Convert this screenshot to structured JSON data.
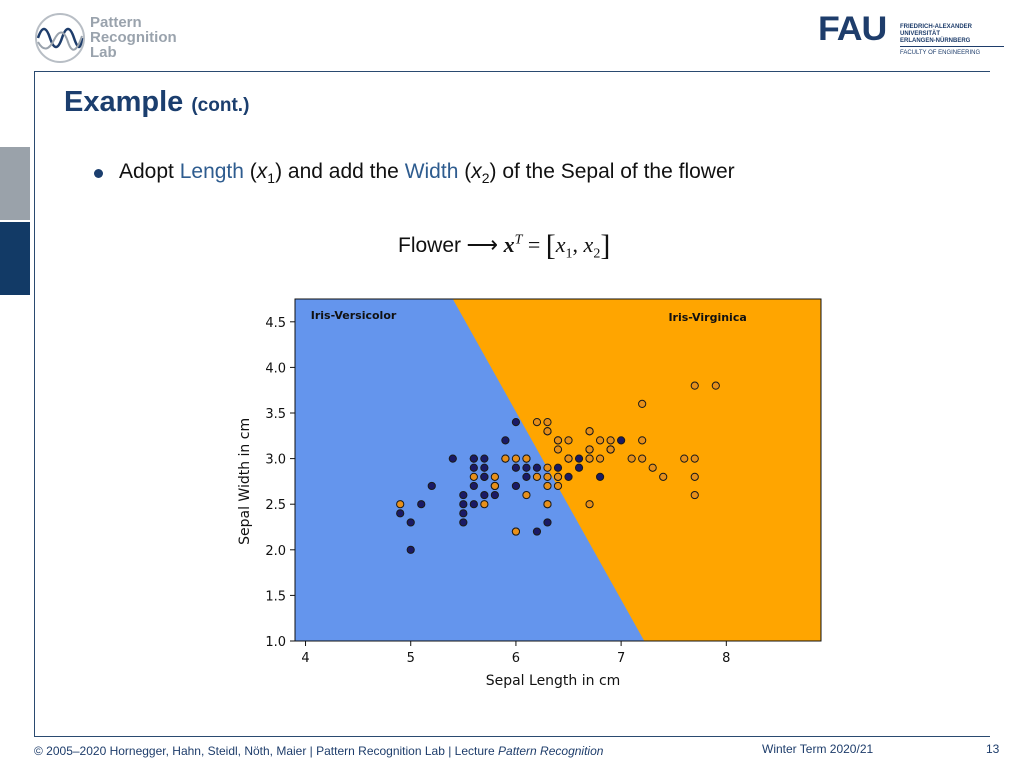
{
  "header": {
    "lab_logo_lines": [
      "Pattern",
      "Recognition",
      "Lab"
    ],
    "fau_word": "FAU",
    "fau_lines": [
      "FRIEDRICH-ALEXANDER",
      "UNIVERSITÄT",
      "ERLANGEN-NÜRNBERG"
    ],
    "fau_faculty": "FACULTY OF ENGINEERING"
  },
  "slide": {
    "title": "Example",
    "title_suffix": "(cont.)",
    "bullet": {
      "pre": "Adopt ",
      "length_word": "Length",
      "mid1": " (",
      "x1": "x",
      "x1_sub": "1",
      "mid2": ") and add the ",
      "width_word": "Width",
      "mid3": " (",
      "x2": "x",
      "x2_sub": "2",
      "post": ") of the Sepal of the flower"
    },
    "formula": {
      "lhs": "Flower",
      "arrow": "⟶",
      "vec": "x",
      "sup": "T",
      "eq": "=",
      "lbr": "[",
      "a": "x",
      "a_sub": "1",
      "comma": ",",
      "b": "x",
      "b_sub": "2",
      "rbr": "]"
    }
  },
  "chart_data": {
    "type": "scatter",
    "xlabel": "Sepal Length in cm",
    "ylabel": "Sepal Width in cm",
    "xlim": [
      3.9,
      8.9
    ],
    "ylim": [
      1.0,
      4.75
    ],
    "xticks": [
      4,
      5,
      6,
      7,
      8
    ],
    "yticks": [
      1.0,
      1.5,
      2.0,
      2.5,
      3.0,
      3.5,
      4.0,
      4.5
    ],
    "regions": [
      {
        "label": "Iris-Versicolor",
        "color": "#6495ed"
      },
      {
        "label": "Iris-Virginica",
        "color": "#ffa500"
      }
    ],
    "decision_boundary": {
      "top": [
        5.4,
        4.75
      ],
      "bottom": [
        7.22,
        1.0
      ]
    },
    "series": [
      {
        "name": "Iris-Versicolor",
        "color": "#1a1a66",
        "points": [
          [
            7.0,
            3.2
          ],
          [
            6.4,
            3.2
          ],
          [
            6.9,
            3.1
          ],
          [
            5.5,
            2.3
          ],
          [
            6.5,
            2.8
          ],
          [
            5.7,
            2.8
          ],
          [
            6.3,
            3.3
          ],
          [
            4.9,
            2.4
          ],
          [
            6.6,
            2.9
          ],
          [
            5.2,
            2.7
          ],
          [
            5.0,
            2.0
          ],
          [
            5.9,
            3.0
          ],
          [
            6.0,
            2.2
          ],
          [
            6.1,
            2.9
          ],
          [
            5.6,
            2.9
          ],
          [
            6.7,
            3.1
          ],
          [
            5.6,
            3.0
          ],
          [
            5.8,
            2.7
          ],
          [
            6.2,
            2.2
          ],
          [
            5.6,
            2.5
          ],
          [
            5.9,
            3.2
          ],
          [
            6.1,
            2.8
          ],
          [
            6.3,
            2.5
          ],
          [
            6.4,
            2.9
          ],
          [
            6.6,
            3.0
          ],
          [
            6.8,
            2.8
          ],
          [
            6.7,
            3.0
          ],
          [
            6.0,
            2.9
          ],
          [
            5.7,
            2.6
          ],
          [
            5.5,
            2.4
          ],
          [
            5.8,
            2.7
          ],
          [
            6.0,
            2.7
          ],
          [
            5.4,
            3.0
          ],
          [
            6.0,
            3.4
          ],
          [
            6.7,
            3.1
          ],
          [
            6.3,
            2.3
          ],
          [
            5.6,
            3.0
          ],
          [
            5.5,
            2.5
          ],
          [
            5.5,
            2.6
          ],
          [
            6.1,
            3.0
          ],
          [
            5.8,
            2.6
          ],
          [
            5.0,
            2.3
          ],
          [
            5.6,
            2.7
          ],
          [
            5.7,
            3.0
          ],
          [
            5.7,
            2.9
          ],
          [
            6.2,
            2.9
          ],
          [
            5.1,
            2.5
          ],
          [
            5.7,
            2.8
          ]
        ]
      },
      {
        "name": "Iris-Virginica",
        "color": "#e8901a",
        "points": [
          [
            6.3,
            3.3
          ],
          [
            5.8,
            2.7
          ],
          [
            7.1,
            3.0
          ],
          [
            6.3,
            2.9
          ],
          [
            6.5,
            3.0
          ],
          [
            7.6,
            3.0
          ],
          [
            4.9,
            2.5
          ],
          [
            7.3,
            2.9
          ],
          [
            6.7,
            2.5
          ],
          [
            7.2,
            3.6
          ],
          [
            6.5,
            3.2
          ],
          [
            6.4,
            2.7
          ],
          [
            6.8,
            3.0
          ],
          [
            5.7,
            2.5
          ],
          [
            5.8,
            2.8
          ],
          [
            6.4,
            3.2
          ],
          [
            6.5,
            3.0
          ],
          [
            7.7,
            3.8
          ],
          [
            7.7,
            2.6
          ],
          [
            6.0,
            2.2
          ],
          [
            6.9,
            3.2
          ],
          [
            5.6,
            2.8
          ],
          [
            7.7,
            2.8
          ],
          [
            6.3,
            2.7
          ],
          [
            6.7,
            3.3
          ],
          [
            7.2,
            3.2
          ],
          [
            6.2,
            2.8
          ],
          [
            6.1,
            3.0
          ],
          [
            6.4,
            2.8
          ],
          [
            7.2,
            3.0
          ],
          [
            7.4,
            2.8
          ],
          [
            7.9,
            3.8
          ],
          [
            6.4,
            2.8
          ],
          [
            6.3,
            2.8
          ],
          [
            6.1,
            2.6
          ],
          [
            7.7,
            3.0
          ],
          [
            6.3,
            3.4
          ],
          [
            6.4,
            3.1
          ],
          [
            6.0,
            3.0
          ],
          [
            6.9,
            3.1
          ],
          [
            6.7,
            3.1
          ],
          [
            6.9,
            3.1
          ],
          [
            6.8,
            3.2
          ],
          [
            6.7,
            3.3
          ],
          [
            6.7,
            3.0
          ],
          [
            6.3,
            2.5
          ],
          [
            6.5,
            3.0
          ],
          [
            6.2,
            3.4
          ],
          [
            5.9,
            3.0
          ]
        ]
      }
    ]
  },
  "footer": {
    "left_pre": "© 2005–2020 Hornegger, Hahn, Steidl, Nöth, Maier   |   Pattern Recognition Lab   |   Lecture ",
    "left_italic": "Pattern Recognition",
    "term": "Winter Term 2020/21",
    "page": "13"
  }
}
